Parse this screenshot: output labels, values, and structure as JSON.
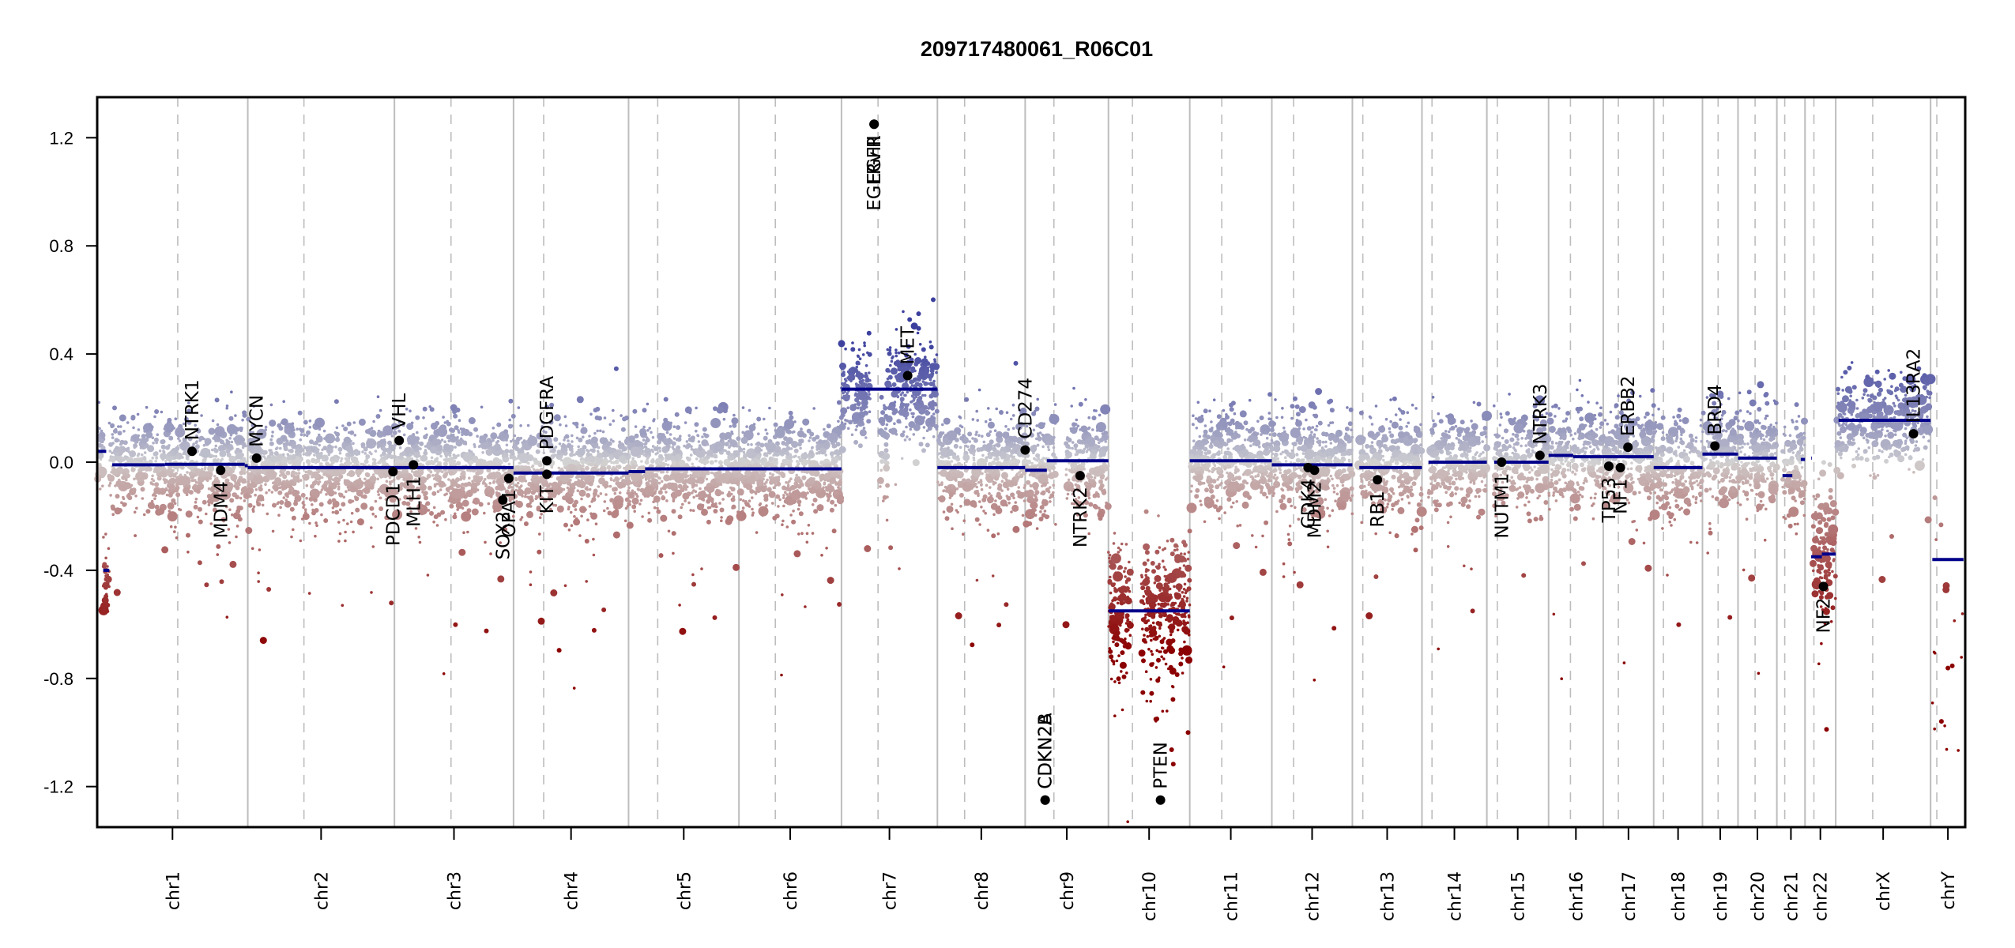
{
  "chart_data": {
    "type": "scatter",
    "title": "209717480061_R06C01",
    "xlabel": "",
    "ylabel": "",
    "ylim": [
      -1.35,
      1.35
    ],
    "yticks": [
      {
        "value": 1.2,
        "label": "1.2"
      },
      {
        "value": 0.8,
        "label": "0.8"
      },
      {
        "value": 0.4,
        "label": "0.4"
      },
      {
        "value": 0.0,
        "label": "0.0"
      },
      {
        "value": -0.4,
        "label": "-0.4"
      },
      {
        "value": -0.8,
        "label": "-0.8"
      },
      {
        "value": -1.2,
        "label": "-1.2"
      }
    ],
    "grid": false,
    "legend": "none",
    "colors": {
      "gain": "#3b3f9e",
      "neutral": "#d3d3d3",
      "loss": "#8b0000",
      "segment": "#00008b",
      "gene_marker": "#000000",
      "chr_boundary": "#bdbdbd",
      "centromere": "#bdbdbd"
    },
    "chromosomes": [
      {
        "name": "chr1",
        "label": "chr1",
        "length": 1.0,
        "centromere": 0.535,
        "gap": null
      },
      {
        "name": "chr2",
        "label": "chr2",
        "length": 0.974,
        "centromere": 0.383,
        "gap": null
      },
      {
        "name": "chr3",
        "label": "chr3",
        "length": 0.791,
        "centromere": 0.475,
        "gap": null
      },
      {
        "name": "chr4",
        "label": "chr4",
        "length": 0.764,
        "centromere": 0.262,
        "gap": null
      },
      {
        "name": "chr5",
        "label": "chr5",
        "length": 0.733,
        "centromere": 0.264,
        "gap": null
      },
      {
        "name": "chr6",
        "label": "chr6",
        "length": 0.681,
        "centromere": 0.355,
        "gap": null
      },
      {
        "name": "chr7",
        "label": "chr7",
        "length": 0.637,
        "centromere": 0.381,
        "gap": [
          0.3,
          0.4
        ]
      },
      {
        "name": "chr8",
        "label": "chr8",
        "length": 0.583,
        "centromere": 0.31,
        "gap": null
      },
      {
        "name": "chr9",
        "label": "chr9",
        "length": 0.553,
        "centromere": 0.345,
        "gap": [
          0.37,
          0.49
        ]
      },
      {
        "name": "chr10",
        "label": "chr10",
        "length": 0.54,
        "centromere": 0.295,
        "gap": [
          0.27,
          0.4
        ]
      },
      {
        "name": "chr11",
        "label": "chr11",
        "length": 0.545,
        "centromere": 0.39,
        "gap": null
      },
      {
        "name": "chr12",
        "label": "chr12",
        "length": 0.535,
        "centromere": 0.27,
        "gap": null
      },
      {
        "name": "chr13",
        "label": "chr13",
        "length": 0.462,
        "centromere": 0.15,
        "gap": [
          0.0,
          0.1
        ]
      },
      {
        "name": "chr14",
        "label": "chr14",
        "length": 0.431,
        "centromere": 0.155,
        "gap": [
          0.0,
          0.1
        ]
      },
      {
        "name": "chr15",
        "label": "chr15",
        "length": 0.41,
        "centromere": 0.17,
        "gap": [
          0.0,
          0.11
        ]
      },
      {
        "name": "chr16",
        "label": "chr16",
        "length": 0.363,
        "centromere": 0.4,
        "gap": null
      },
      {
        "name": "chr17",
        "label": "chr17",
        "length": 0.335,
        "centromere": 0.3,
        "gap": null
      },
      {
        "name": "chr18",
        "label": "chr18",
        "length": 0.324,
        "centromere": 0.2,
        "gap": null
      },
      {
        "name": "chr19",
        "label": "chr19",
        "length": 0.236,
        "centromere": 0.44,
        "gap": null
      },
      {
        "name": "chr20",
        "label": "chr20",
        "length": 0.258,
        "centromere": 0.44,
        "gap": null
      },
      {
        "name": "chr21",
        "label": "chr21",
        "length": 0.187,
        "centromere": 0.28,
        "gap": [
          0.0,
          0.2
        ]
      },
      {
        "name": "chr22",
        "label": "chr22",
        "length": 0.204,
        "centromere": 0.29,
        "gap": [
          0.0,
          0.25
        ]
      },
      {
        "name": "chrX",
        "label": "chrX",
        "length": 0.63,
        "centromere": 0.39,
        "gap": null
      },
      {
        "name": "chrY",
        "label": "chrY",
        "length": 0.23,
        "centromere": 0.18,
        "gap": null
      }
    ],
    "segments": [
      {
        "chr": "chr1",
        "start": 0.0,
        "end": 0.06,
        "value": 0.04
      },
      {
        "chr": "chr1",
        "start": 0.04,
        "end": 0.08,
        "value": -0.4
      },
      {
        "chr": "chr1",
        "start": 0.1,
        "end": 0.45,
        "value": -0.01
      },
      {
        "chr": "chr1",
        "start": 0.45,
        "end": 0.98,
        "value": -0.008
      },
      {
        "chr": "chr1",
        "start": 0.98,
        "end": 1.0,
        "value": -0.013
      },
      {
        "chr": "chr2",
        "start": 0.0,
        "end": 1.0,
        "value": -0.02
      },
      {
        "chr": "chr3",
        "start": 0.0,
        "end": 1.0,
        "value": -0.02
      },
      {
        "chr": "chr4",
        "start": 0.0,
        "end": 1.0,
        "value": -0.04
      },
      {
        "chr": "chr5",
        "start": 0.0,
        "end": 0.15,
        "value": -0.035
      },
      {
        "chr": "chr5",
        "start": 0.15,
        "end": 1.0,
        "value": -0.025
      },
      {
        "chr": "chr6",
        "start": 0.0,
        "end": 1.0,
        "value": -0.025
      },
      {
        "chr": "chr7",
        "start": 0.0,
        "end": 1.0,
        "value": 0.27
      },
      {
        "chr": "chr8",
        "start": 0.0,
        "end": 1.0,
        "value": -0.02
      },
      {
        "chr": "chr9",
        "start": 0.0,
        "end": 0.26,
        "value": -0.03
      },
      {
        "chr": "chr9",
        "start": 0.26,
        "end": 1.0,
        "value": 0.005
      },
      {
        "chr": "chr10",
        "start": 0.0,
        "end": 1.0,
        "value": -0.55
      },
      {
        "chr": "chr11",
        "start": 0.0,
        "end": 1.0,
        "value": 0.005
      },
      {
        "chr": "chr12",
        "start": 0.0,
        "end": 1.0,
        "value": -0.01
      },
      {
        "chr": "chr13",
        "start": 0.1,
        "end": 1.0,
        "value": -0.02
      },
      {
        "chr": "chr14",
        "start": 0.1,
        "end": 1.0,
        "value": 0.0
      },
      {
        "chr": "chr15",
        "start": 0.12,
        "end": 1.0,
        "value": 0.0
      },
      {
        "chr": "chr16",
        "start": 0.0,
        "end": 0.45,
        "value": 0.025
      },
      {
        "chr": "chr16",
        "start": 0.45,
        "end": 1.0,
        "value": 0.02
      },
      {
        "chr": "chr17",
        "start": 0.0,
        "end": 1.0,
        "value": 0.02
      },
      {
        "chr": "chr18",
        "start": 0.0,
        "end": 1.0,
        "value": -0.02
      },
      {
        "chr": "chr19",
        "start": 0.0,
        "end": 1.0,
        "value": 0.03
      },
      {
        "chr": "chr20",
        "start": 0.0,
        "end": 1.0,
        "value": 0.015
      },
      {
        "chr": "chr21",
        "start": 0.2,
        "end": 0.55,
        "value": -0.05
      },
      {
        "chr": "chr21",
        "start": 0.85,
        "end": 1.0,
        "value": 0.01
      },
      {
        "chr": "chr22",
        "start": 0.2,
        "end": 0.55,
        "value": -0.35
      },
      {
        "chr": "chr22",
        "start": 0.55,
        "end": 1.0,
        "value": -0.34
      },
      {
        "chr": "chr22",
        "start": 0.2,
        "end": 0.22,
        "value": 0.015
      },
      {
        "chr": "chrX",
        "start": 0.03,
        "end": 1.0,
        "value": 0.155
      },
      {
        "chr": "chrY",
        "start": 0.05,
        "end": 0.95,
        "value": -0.36
      }
    ],
    "profile": [
      {
        "chr": "chr1",
        "center": -0.01,
        "spread": 0.09,
        "density": 1.0
      },
      {
        "chr": "chr2",
        "center": -0.02,
        "spread": 0.09,
        "density": 1.0
      },
      {
        "chr": "chr3",
        "center": -0.02,
        "spread": 0.09,
        "density": 1.0
      },
      {
        "chr": "chr4",
        "center": -0.04,
        "spread": 0.09,
        "density": 1.0
      },
      {
        "chr": "chr5",
        "center": -0.025,
        "spread": 0.09,
        "density": 1.0
      },
      {
        "chr": "chr6",
        "center": -0.025,
        "spread": 0.09,
        "density": 1.0
      },
      {
        "chr": "chr7",
        "center": 0.27,
        "spread": 0.1,
        "density": 1.0
      },
      {
        "chr": "chr8",
        "center": -0.02,
        "spread": 0.09,
        "density": 1.0
      },
      {
        "chr": "chr9",
        "center": 0.0,
        "spread": 0.09,
        "density": 1.0
      },
      {
        "chr": "chr10",
        "center": -0.55,
        "spread": 0.14,
        "density": 1.2
      },
      {
        "chr": "chr11",
        "center": 0.005,
        "spread": 0.09,
        "density": 1.0
      },
      {
        "chr": "chr12",
        "center": -0.01,
        "spread": 0.09,
        "density": 1.0
      },
      {
        "chr": "chr13",
        "center": -0.02,
        "spread": 0.09,
        "density": 0.9
      },
      {
        "chr": "chr14",
        "center": 0.0,
        "spread": 0.09,
        "density": 0.9
      },
      {
        "chr": "chr15",
        "center": 0.0,
        "spread": 0.09,
        "density": 0.9
      },
      {
        "chr": "chr16",
        "center": 0.02,
        "spread": 0.09,
        "density": 1.0
      },
      {
        "chr": "chr17",
        "center": 0.02,
        "spread": 0.09,
        "density": 1.0
      },
      {
        "chr": "chr18",
        "center": -0.02,
        "spread": 0.09,
        "density": 1.0
      },
      {
        "chr": "chr19",
        "center": 0.03,
        "spread": 0.09,
        "density": 1.0
      },
      {
        "chr": "chr20",
        "center": 0.015,
        "spread": 0.09,
        "density": 1.0
      },
      {
        "chr": "chr21",
        "center": -0.02,
        "spread": 0.09,
        "density": 0.9
      },
      {
        "chr": "chr22",
        "center": -0.34,
        "spread": 0.12,
        "density": 1.1
      },
      {
        "chr": "chrX",
        "center": 0.155,
        "spread": 0.08,
        "density": 0.8
      },
      {
        "chr": "chrY",
        "center": -0.6,
        "spread": 0.3,
        "density": 0.1
      }
    ],
    "genes": [
      {
        "name": "NTRK1",
        "chr": "chr1",
        "pos": 0.63,
        "value": 0.04,
        "label_side": "above"
      },
      {
        "name": "MDM4",
        "chr": "chr1",
        "pos": 0.82,
        "value": -0.03,
        "label_side": "below"
      },
      {
        "name": "MYCN",
        "chr": "chr2",
        "pos": 0.06,
        "value": 0.015,
        "label_side": "above"
      },
      {
        "name": "PDCD1",
        "chr": "chr2",
        "pos": 0.99,
        "value": -0.035,
        "label_side": "below"
      },
      {
        "name": "VHL",
        "chr": "chr3",
        "pos": 0.04,
        "value": 0.08,
        "label_side": "above"
      },
      {
        "name": "MLH1",
        "chr": "chr3",
        "pos": 0.16,
        "value": -0.01,
        "label_side": "below"
      },
      {
        "name": "SOX2",
        "chr": "chr3",
        "pos": 0.91,
        "value": -0.14,
        "label_side": "below"
      },
      {
        "name": "OPA1",
        "chr": "chr3",
        "pos": 0.96,
        "value": -0.06,
        "label_side": "below"
      },
      {
        "name": "PDGFRA",
        "chr": "chr4",
        "pos": 0.29,
        "value": 0.005,
        "label_side": "above"
      },
      {
        "name": "KIT",
        "chr": "chr4",
        "pos": 0.29,
        "value": -0.045,
        "label_side": "below"
      },
      {
        "name": "EGFR",
        "chr": "chr7",
        "pos": 0.34,
        "value": 1.25,
        "label_side": "below"
      },
      {
        "name": "EGFRvIII",
        "chr": "chr7",
        "pos": 0.34,
        "value": 1.25,
        "label_side": "below"
      },
      {
        "name": "MET",
        "chr": "chr7",
        "pos": 0.69,
        "value": 0.32,
        "label_side": "above"
      },
      {
        "name": "CD274",
        "chr": "chr9",
        "pos": 0.0,
        "value": 0.045,
        "label_side": "above"
      },
      {
        "name": "CDKN2A",
        "chr": "chr9",
        "pos": 0.24,
        "value": -1.25,
        "label_side": "above"
      },
      {
        "name": "CDKN2B",
        "chr": "chr9",
        "pos": 0.24,
        "value": -1.25,
        "label_side": "above"
      },
      {
        "name": "NTRK2",
        "chr": "chr9",
        "pos": 0.66,
        "value": -0.05,
        "label_side": "below"
      },
      {
        "name": "PTEN",
        "chr": "chr10",
        "pos": 0.64,
        "value": -1.25,
        "label_side": "above"
      },
      {
        "name": "CDK4",
        "chr": "chr12",
        "pos": 0.45,
        "value": -0.02,
        "label_side": "below"
      },
      {
        "name": "MDM2",
        "chr": "chr12",
        "pos": 0.53,
        "value": -0.03,
        "label_side": "below"
      },
      {
        "name": "RB1",
        "chr": "chr13",
        "pos": 0.36,
        "value": -0.065,
        "label_side": "below"
      },
      {
        "name": "NUTM1",
        "chr": "chr15",
        "pos": 0.24,
        "value": 0.0,
        "label_side": "below"
      },
      {
        "name": "NTRK3",
        "chr": "chr15",
        "pos": 0.86,
        "value": 0.025,
        "label_side": "above"
      },
      {
        "name": "TP53",
        "chr": "chr17",
        "pos": 0.11,
        "value": -0.015,
        "label_side": "below"
      },
      {
        "name": "NF1",
        "chr": "chr17",
        "pos": 0.34,
        "value": -0.02,
        "label_side": "below"
      },
      {
        "name": "ERBB2",
        "chr": "chr17",
        "pos": 0.49,
        "value": 0.055,
        "label_side": "above"
      },
      {
        "name": "BRD4",
        "chr": "chr19",
        "pos": 0.35,
        "value": 0.06,
        "label_side": "above"
      },
      {
        "name": "NF2",
        "chr": "chr22",
        "pos": 0.6,
        "value": -0.46,
        "label_side": "below"
      },
      {
        "name": "IL13RA2",
        "chr": "chrX",
        "pos": 0.82,
        "value": 0.105,
        "label_side": "above"
      }
    ]
  }
}
